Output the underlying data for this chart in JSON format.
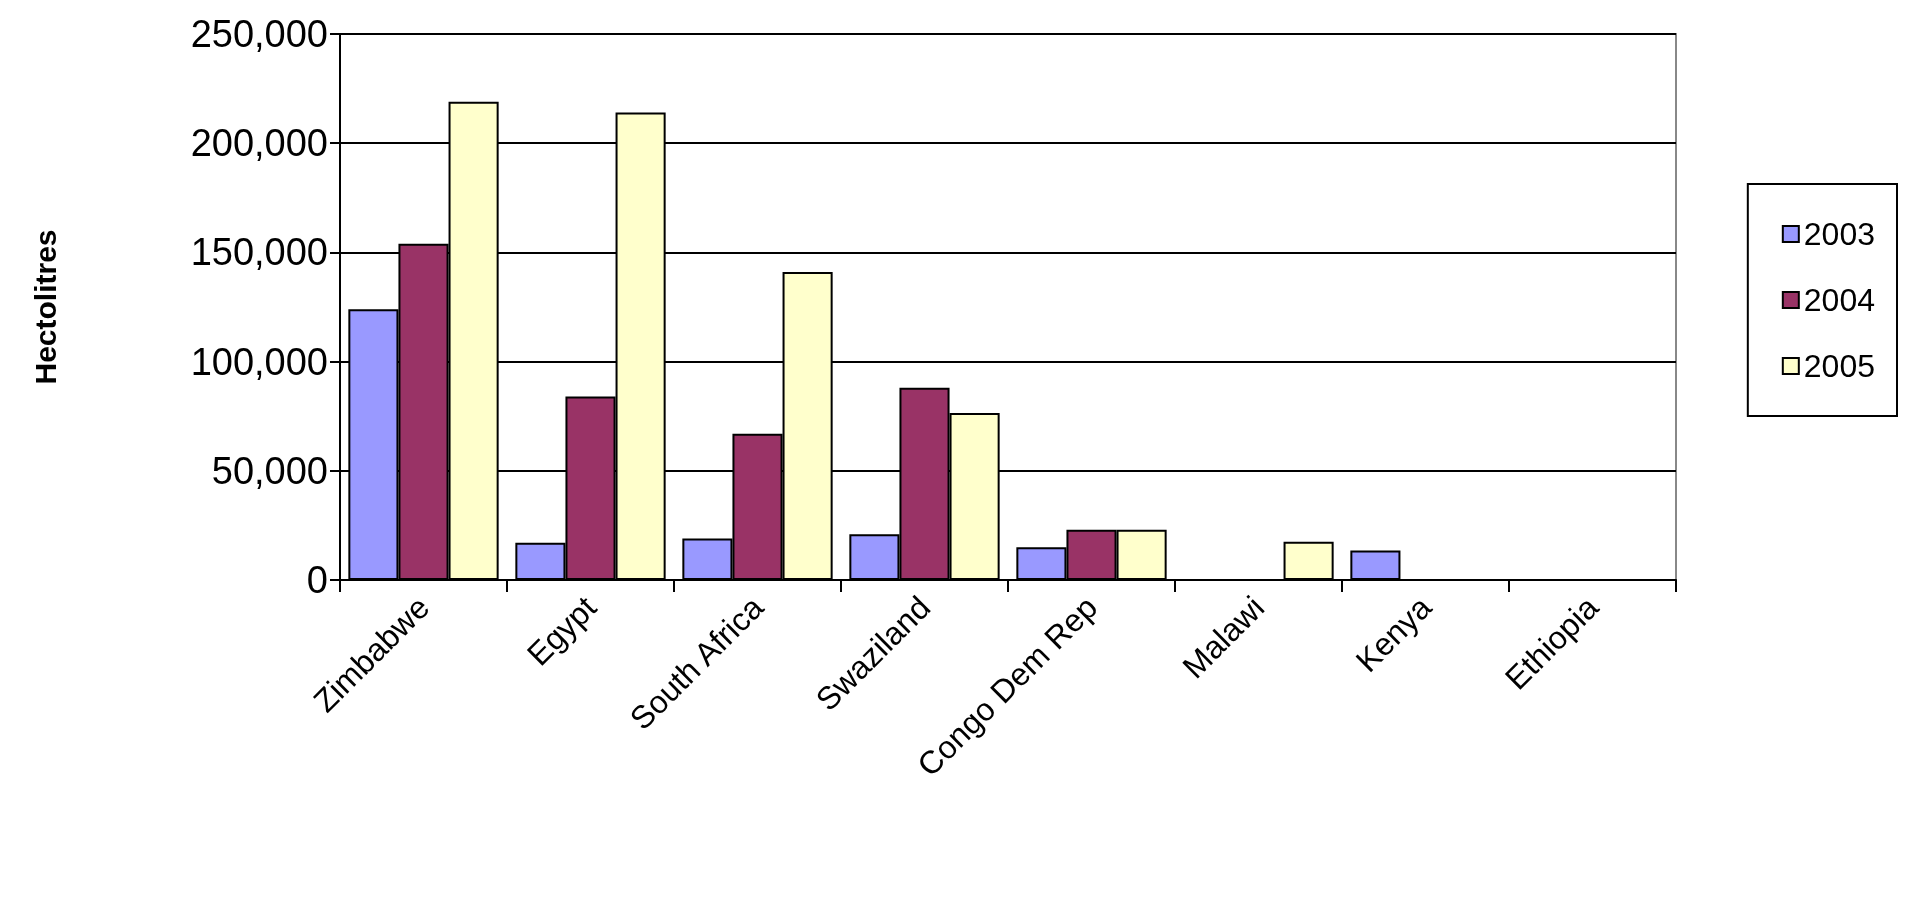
{
  "chart_data": {
    "type": "bar",
    "ylabel": "Hectolitres",
    "categories": [
      "Zimbabwe",
      "Egypt",
      "South Africa",
      "Swaziland",
      "Congo Dem Rep",
      "Malawi",
      "Kenya",
      "Ethiopia"
    ],
    "series": [
      {
        "name": "2003",
        "color": "#9999ff",
        "values": [
          124000,
          17000,
          19000,
          21000,
          15000,
          null,
          13500,
          null
        ]
      },
      {
        "name": "2004",
        "color": "#993366",
        "values": [
          154000,
          84000,
          67000,
          88000,
          23000,
          null,
          null,
          null
        ]
      },
      {
        "name": "2005",
        "color": "#ffffcc",
        "values": [
          219000,
          214000,
          141000,
          76500,
          23000,
          17500,
          null,
          null
        ]
      }
    ],
    "ylim": [
      0,
      250000
    ],
    "yticks": [
      0,
      {
        "value": 50000,
        "label": "50,000"
      },
      {
        "value": 100000,
        "label": "100,000"
      },
      {
        "value": 150000,
        "label": "150,000"
      },
      {
        "value": 200000,
        "label": "200,000"
      },
      {
        "value": 250000,
        "label": "250,000"
      }
    ],
    "grid": "y",
    "legend": "right"
  }
}
